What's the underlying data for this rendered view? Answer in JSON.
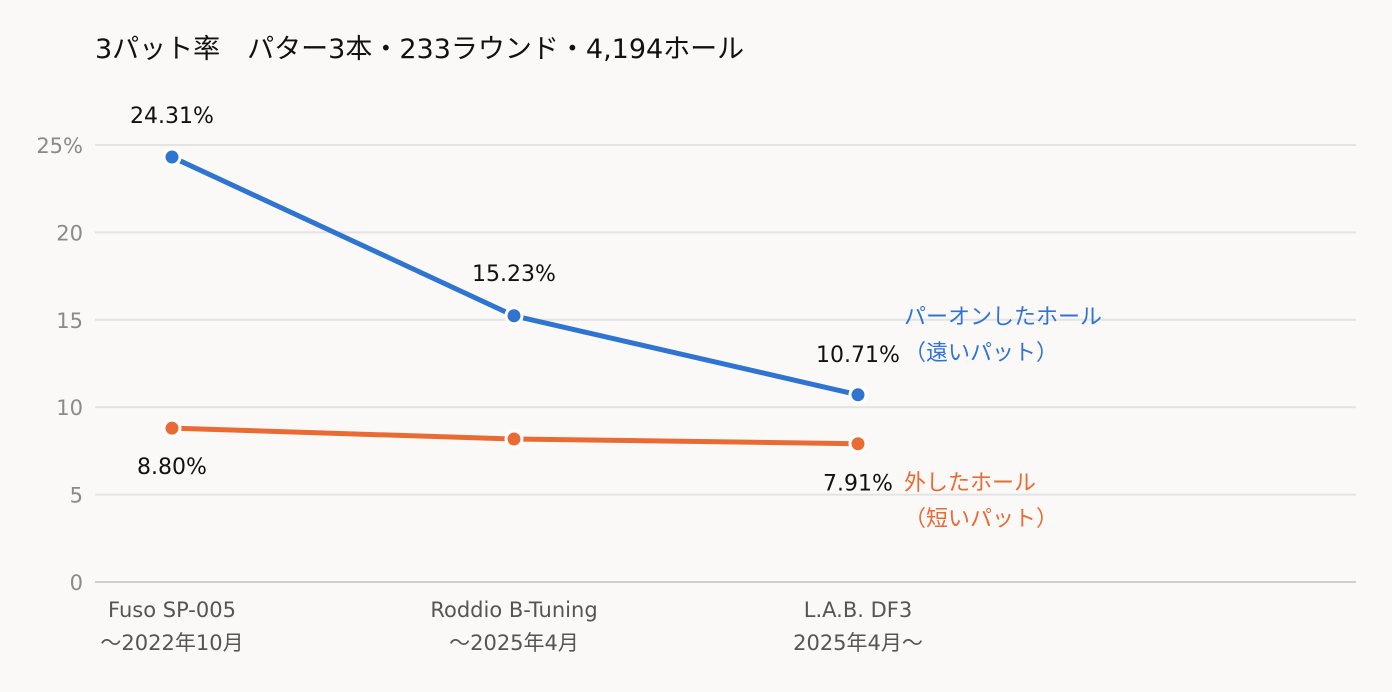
{
  "chart_data": {
    "type": "line",
    "title": "3パット率　パター3本・233ラウンド・4,194ホール",
    "categories": [
      [
        "Fuso SP-005",
        "〜2022年10月"
      ],
      [
        "Roddio B-Tuning",
        "〜2025年4月"
      ],
      [
        "L.A.B. DF3",
        "2025年4月〜"
      ]
    ],
    "ylim": [
      0,
      25
    ],
    "yticks": [
      0,
      5,
      10,
      15,
      20,
      25
    ],
    "ytick_labels": [
      "0",
      "5",
      "10",
      "15",
      "20",
      "25%"
    ],
    "grid": true,
    "series": [
      {
        "name": [
          "パーオンしたホール",
          "（遠いパット）"
        ],
        "values": [
          24.31,
          15.23,
          10.71
        ],
        "data_labels": [
          "24.31%",
          "15.23%",
          "10.71%"
        ],
        "color": "#2f74d0"
      },
      {
        "name": [
          "外したホール",
          "（短いパット）"
        ],
        "values": [
          8.8,
          8.18,
          7.91
        ],
        "data_labels": [
          "8.80%",
          "",
          "7.91%"
        ],
        "color": "#ea6a34"
      }
    ]
  }
}
